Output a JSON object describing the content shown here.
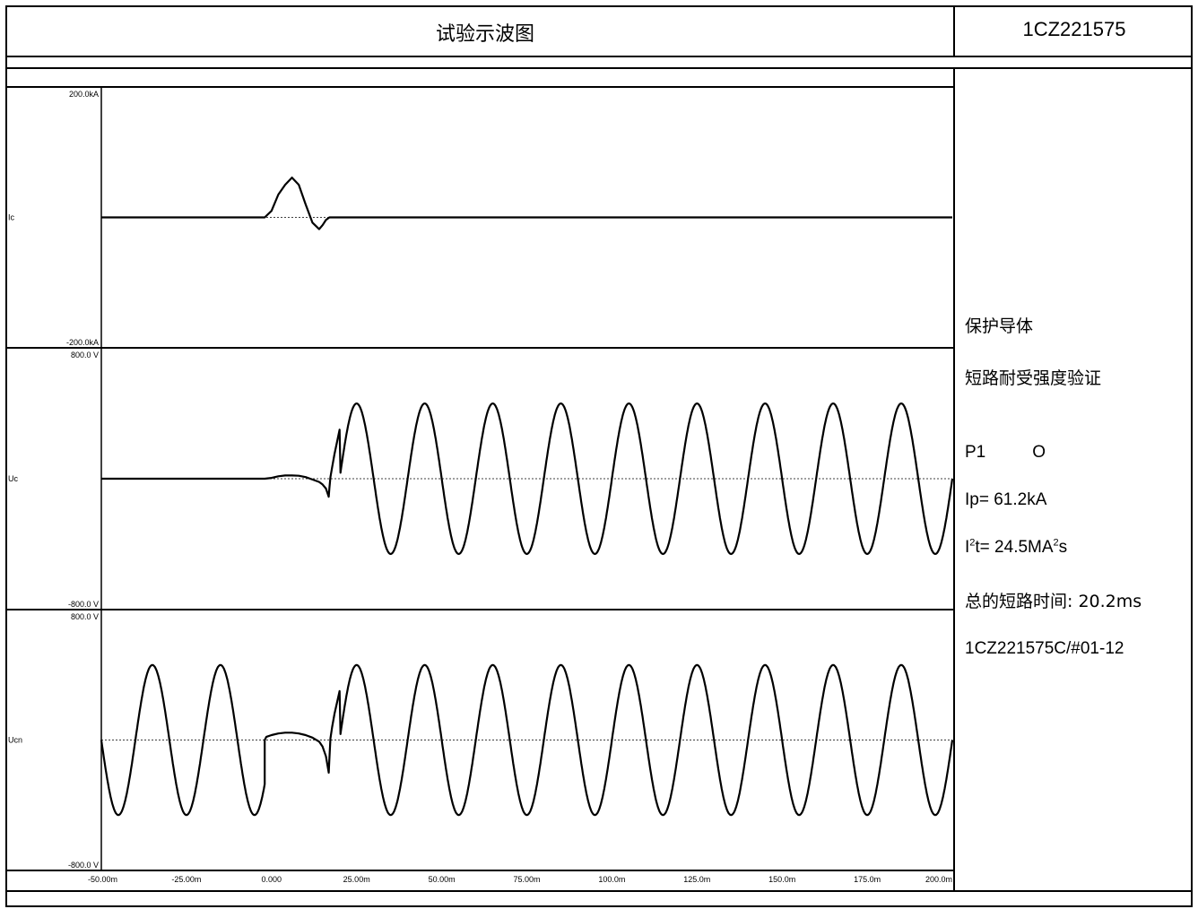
{
  "header": {
    "title": "试验示波图",
    "report_code": "1CZ221575"
  },
  "side_panel": {
    "line1": "保护导体",
    "line2": "短路耐受强度验证",
    "phase": "P1",
    "operation": "O",
    "ip": "Ip= 61.2kA",
    "i2t_base": "I",
    "i2t_mid": "t= 24.5MA",
    "i2t_end": "s",
    "exponent": "2",
    "total_time": "总的短路时间: 20.2ms",
    "record_id": "1CZ221575C/#01-12"
  },
  "chart_data": [
    {
      "type": "line",
      "channel": "Ic",
      "ymax_label": "200.0kA",
      "ymin_label": "-200.0kA",
      "ylim": [
        -200,
        200
      ],
      "yunit": "kA",
      "xlim": [
        -50,
        200
      ],
      "x_unit": "ms",
      "series": [
        {
          "name": "Ic",
          "x": [
            -50,
            -2,
            0,
            2,
            4,
            6,
            8,
            10,
            12,
            14,
            15,
            16,
            17,
            18,
            200
          ],
          "y": [
            0,
            0,
            10,
            35,
            50,
            61,
            50,
            20,
            -8,
            -18,
            -12,
            -4,
            0,
            0,
            0
          ]
        }
      ]
    },
    {
      "type": "line",
      "channel": "Uc",
      "ymax_label": "800.0 V",
      "ymin_label": "-800.0 V",
      "ylim": [
        -800,
        800
      ],
      "yunit": "V",
      "xlim": [
        -50,
        200
      ],
      "x_unit": "ms",
      "series": [
        {
          "name": "Uc",
          "x": [
            -50,
            -2,
            0,
            2,
            4,
            6,
            8,
            10,
            12,
            14,
            15,
            16,
            16.8,
            17,
            17.3,
            17.8,
            18.5,
            20,
            23,
            200
          ],
          "y": [
            0,
            0,
            5,
            15,
            20,
            20,
            18,
            10,
            -5,
            -20,
            -35,
            -60,
            -110,
            -60,
            10,
            70,
            150,
            300,
            460,
            0
          ],
          "steady_sine": {
            "from": 17.5,
            "to": 200,
            "amplitude": 460,
            "period_ms": 20,
            "peak_at_ms": 25
          }
        }
      ]
    },
    {
      "type": "line",
      "channel": "Ucn",
      "ymax_label": "800.0 V",
      "ymin_label": "-800.0 V",
      "ylim": [
        -800,
        800
      ],
      "yunit": "V",
      "xlim": [
        -50,
        200
      ],
      "x_unit": "ms",
      "series": [
        {
          "name": "Ucn",
          "x": [
            -2,
            -1.5,
            0,
            2,
            4,
            6,
            8,
            10,
            12,
            14,
            15,
            16,
            16.8,
            17,
            17.3,
            17.8,
            18.5,
            20,
            23
          ],
          "y": [
            0,
            20,
            30,
            40,
            45,
            45,
            40,
            30,
            15,
            -10,
            -40,
            -100,
            -200,
            -120,
            10,
            80,
            160,
            300,
            460
          ],
          "steady_sine": {
            "from": -50,
            "to": -2,
            "amplitude": 460,
            "period_ms": 20,
            "peak_at_ms": -35
          },
          "steady_sine_after": {
            "from": 17.5,
            "to": 200,
            "amplitude": 460,
            "period_ms": 20,
            "peak_at_ms": 25
          }
        }
      ]
    }
  ],
  "x_ticks": [
    "-50.00m",
    "-25.00m",
    "0.000",
    "25.00m",
    "50.00m",
    "75.00m",
    "100.0m",
    "125.0m",
    "150.0m",
    "175.0m",
    "200.0m"
  ]
}
